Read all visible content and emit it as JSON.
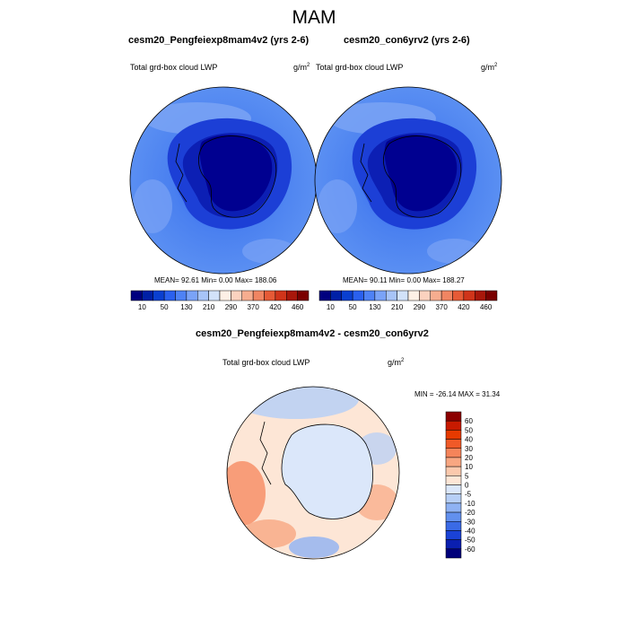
{
  "title": "MAM",
  "panel_left": {
    "case_title": "cesm20_Pengfeiexp8mam4v2 (yrs 2-6)",
    "variable": "Total grd-box cloud LWP",
    "units": "g/m",
    "units_exp": "2",
    "stats": "MEAN=  92.61  Min=    0.00  Max= 188.06"
  },
  "panel_right": {
    "case_title": "cesm20_con6yrv2 (yrs 2-6)",
    "variable": "Total grd-box cloud LWP",
    "units": "g/m",
    "units_exp": "2",
    "stats": "MEAN=  90.11  Min=    0.00  Max= 188.27"
  },
  "colorbar_top": {
    "labels": [
      "10",
      "50",
      "130",
      "210",
      "290",
      "370",
      "420",
      "460"
    ],
    "colors": [
      "#00007f",
      "#0020a6",
      "#0a3fd0",
      "#2a60ee",
      "#4e82f5",
      "#7aa3f7",
      "#a7c4f8",
      "#d2e2fa",
      "#fdf0e6",
      "#fbd2bf",
      "#f6ad8f",
      "#f08562",
      "#e65a36",
      "#d0341a",
      "#a8170a",
      "#7a0000"
    ]
  },
  "panel_diff": {
    "case_title": "cesm20_Pengfeiexp8mam4v2 - cesm20_con6yrv2",
    "variable": "Total grd-box cloud LWP",
    "units": "g/m",
    "units_exp": "2",
    "minmax": "MIN = -26.14 MAX =  31.34"
  },
  "colorbar_diff": {
    "labels": [
      "60",
      "50",
      "40",
      "30",
      "20",
      "10",
      "5",
      "0",
      "-5",
      "-10",
      "-20",
      "-30",
      "-40",
      "-50",
      "-60"
    ],
    "colors": [
      "#8c0000",
      "#c81a00",
      "#e63a00",
      "#f05a28",
      "#f5845a",
      "#f8a782",
      "#fbc9ad",
      "#fde6d6",
      "#dbe7fa",
      "#b7cff6",
      "#8fb2f3",
      "#6290ee",
      "#3a6ae6",
      "#1a42d6",
      "#0a1fb0",
      "#00007a"
    ]
  },
  "colors": {
    "antarctic_core": "#000090",
    "ocean_mid": "#4f86f0",
    "diff_neutral": "#eef3fb"
  }
}
